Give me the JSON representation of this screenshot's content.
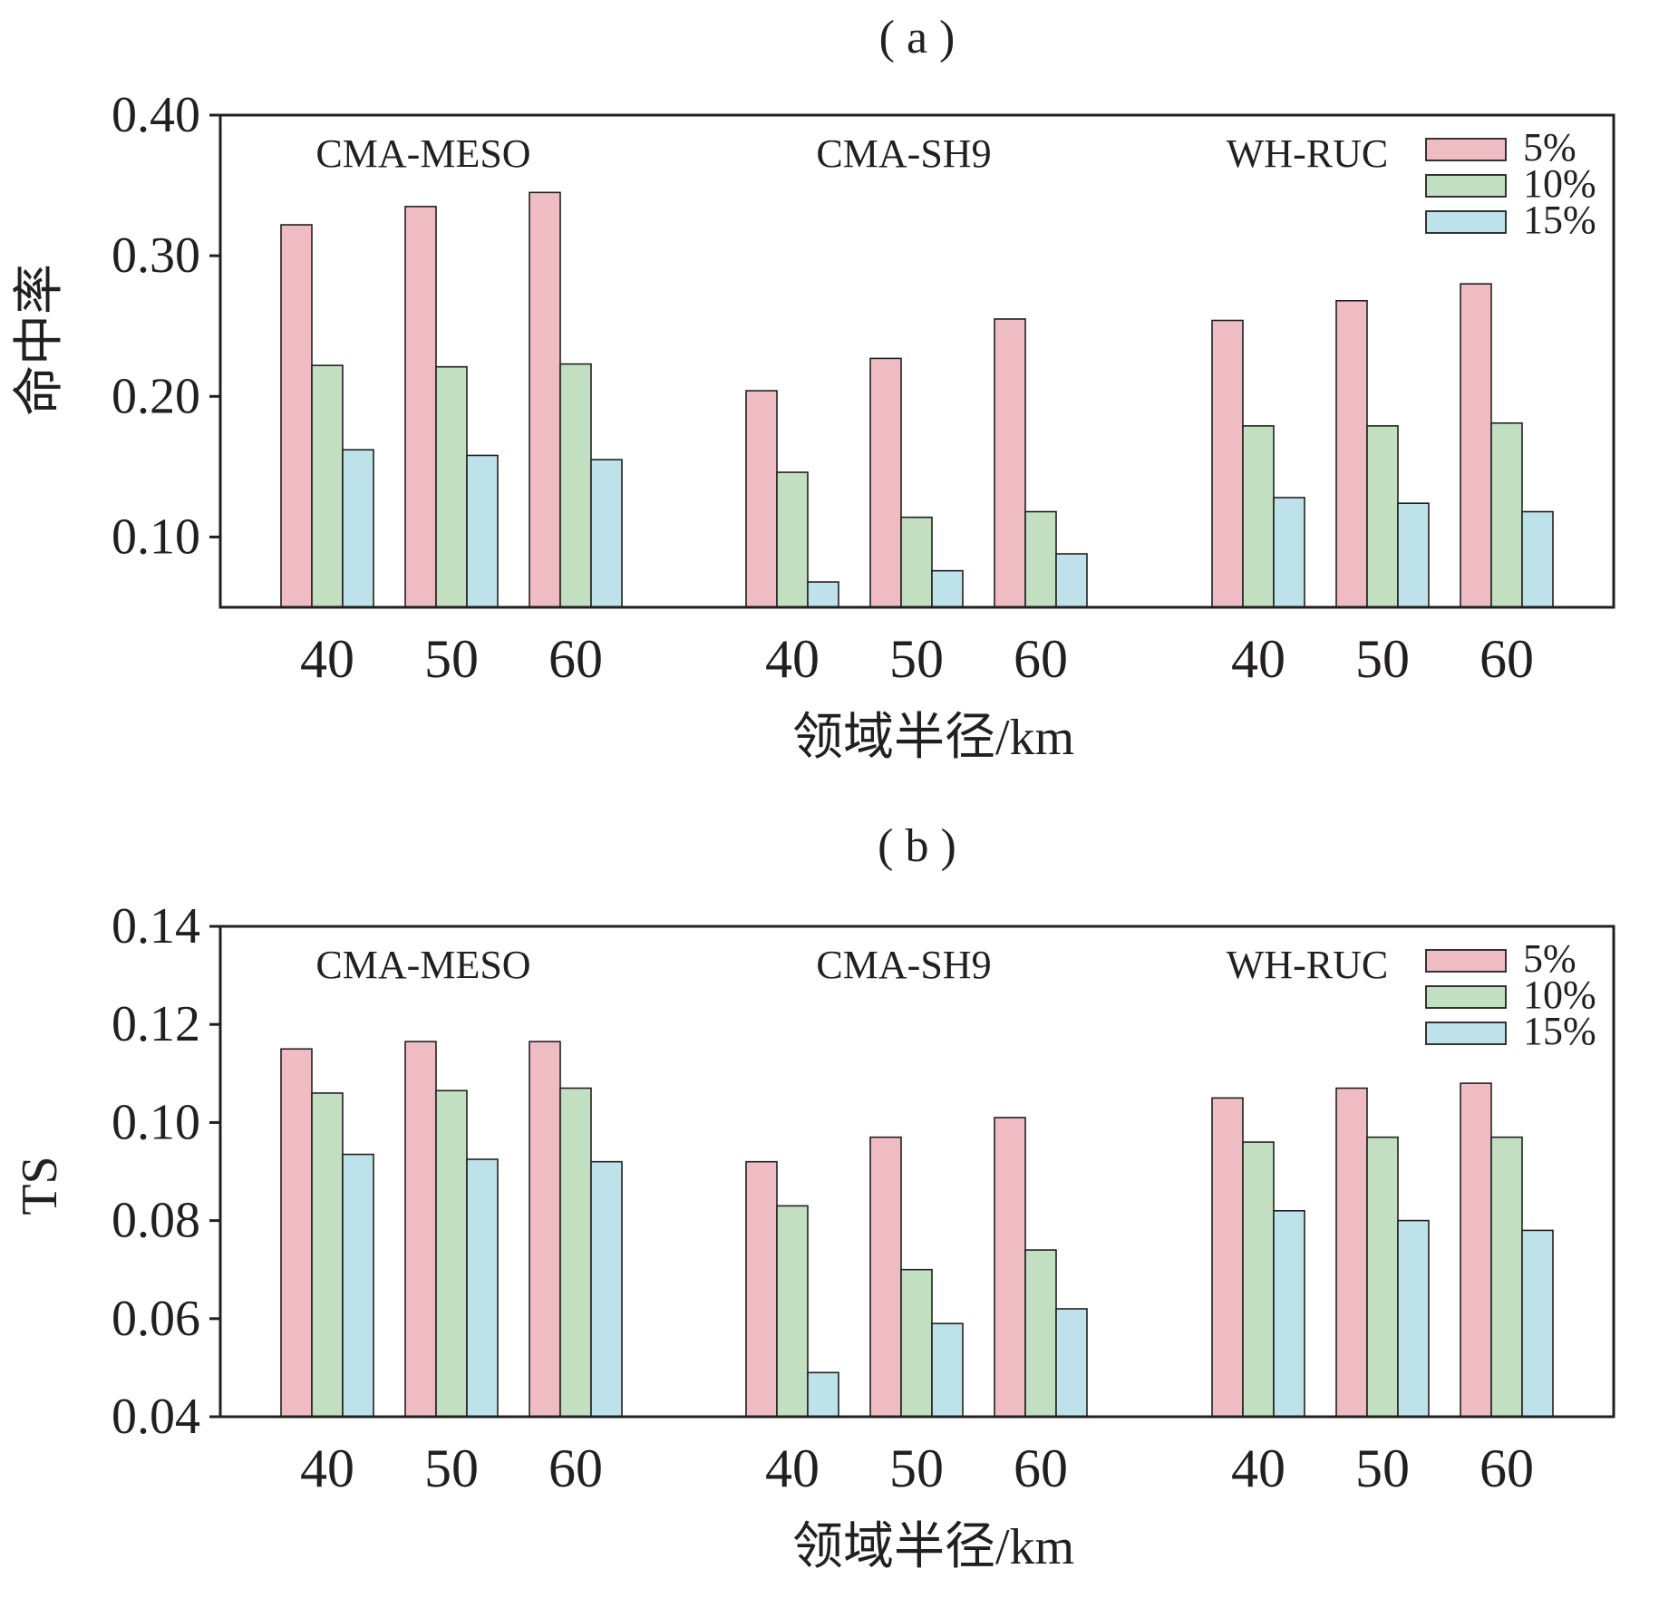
{
  "colors": {
    "frame": "#231f20",
    "series": [
      "#f0bcc4",
      "#c2e0c1",
      "#bde2ea"
    ]
  },
  "chart_data": [
    {
      "type": "bar",
      "panel_label": "( a )",
      "ylabel": "命中率",
      "xlabel": "领域半径/km",
      "ylim": [
        0.05,
        0.4
      ],
      "yticks": [
        "0.10",
        "0.20",
        "0.30",
        "0.40"
      ],
      "ytick_values": [
        0.1,
        0.2,
        0.3,
        0.4
      ],
      "groups": [
        "CMA-MESO",
        "CMA-SH9",
        "WH-RUC"
      ],
      "categories": [
        "40",
        "50",
        "60"
      ],
      "legend": {
        "position": "top-right"
      },
      "grid": false,
      "series": [
        {
          "name": "5%",
          "values": [
            [
              0.322,
              0.335,
              0.345
            ],
            [
              0.204,
              0.227,
              0.255
            ],
            [
              0.254,
              0.268,
              0.28
            ]
          ]
        },
        {
          "name": "10%",
          "values": [
            [
              0.222,
              0.221,
              0.223
            ],
            [
              0.146,
              0.114,
              0.118
            ],
            [
              0.179,
              0.179,
              0.181
            ]
          ]
        },
        {
          "name": "15%",
          "values": [
            [
              0.162,
              0.158,
              0.155
            ],
            [
              0.068,
              0.076,
              0.088
            ],
            [
              0.128,
              0.124,
              0.118
            ]
          ]
        }
      ]
    },
    {
      "type": "bar",
      "panel_label": "( b )",
      "ylabel": "TS",
      "xlabel": "领域半径/km",
      "ylim": [
        0.04,
        0.14
      ],
      "yticks": [
        "0.04",
        "0.06",
        "0.08",
        "0.10",
        "0.12",
        "0.14"
      ],
      "ytick_values": [
        0.04,
        0.06,
        0.08,
        0.1,
        0.12,
        0.14
      ],
      "groups": [
        "CMA-MESO",
        "CMA-SH9",
        "WH-RUC"
      ],
      "categories": [
        "40",
        "50",
        "60"
      ],
      "legend": {
        "position": "top-right"
      },
      "grid": false,
      "series": [
        {
          "name": "5%",
          "values": [
            [
              0.115,
              0.1165,
              0.1165
            ],
            [
              0.092,
              0.097,
              0.101
            ],
            [
              0.105,
              0.107,
              0.108
            ]
          ]
        },
        {
          "name": "10%",
          "values": [
            [
              0.106,
              0.1065,
              0.107
            ],
            [
              0.083,
              0.07,
              0.074
            ],
            [
              0.096,
              0.097,
              0.097
            ]
          ]
        },
        {
          "name": "15%",
          "values": [
            [
              0.0935,
              0.0925,
              0.092
            ],
            [
              0.049,
              0.059,
              0.062
            ],
            [
              0.082,
              0.08,
              0.078
            ]
          ]
        }
      ]
    }
  ]
}
